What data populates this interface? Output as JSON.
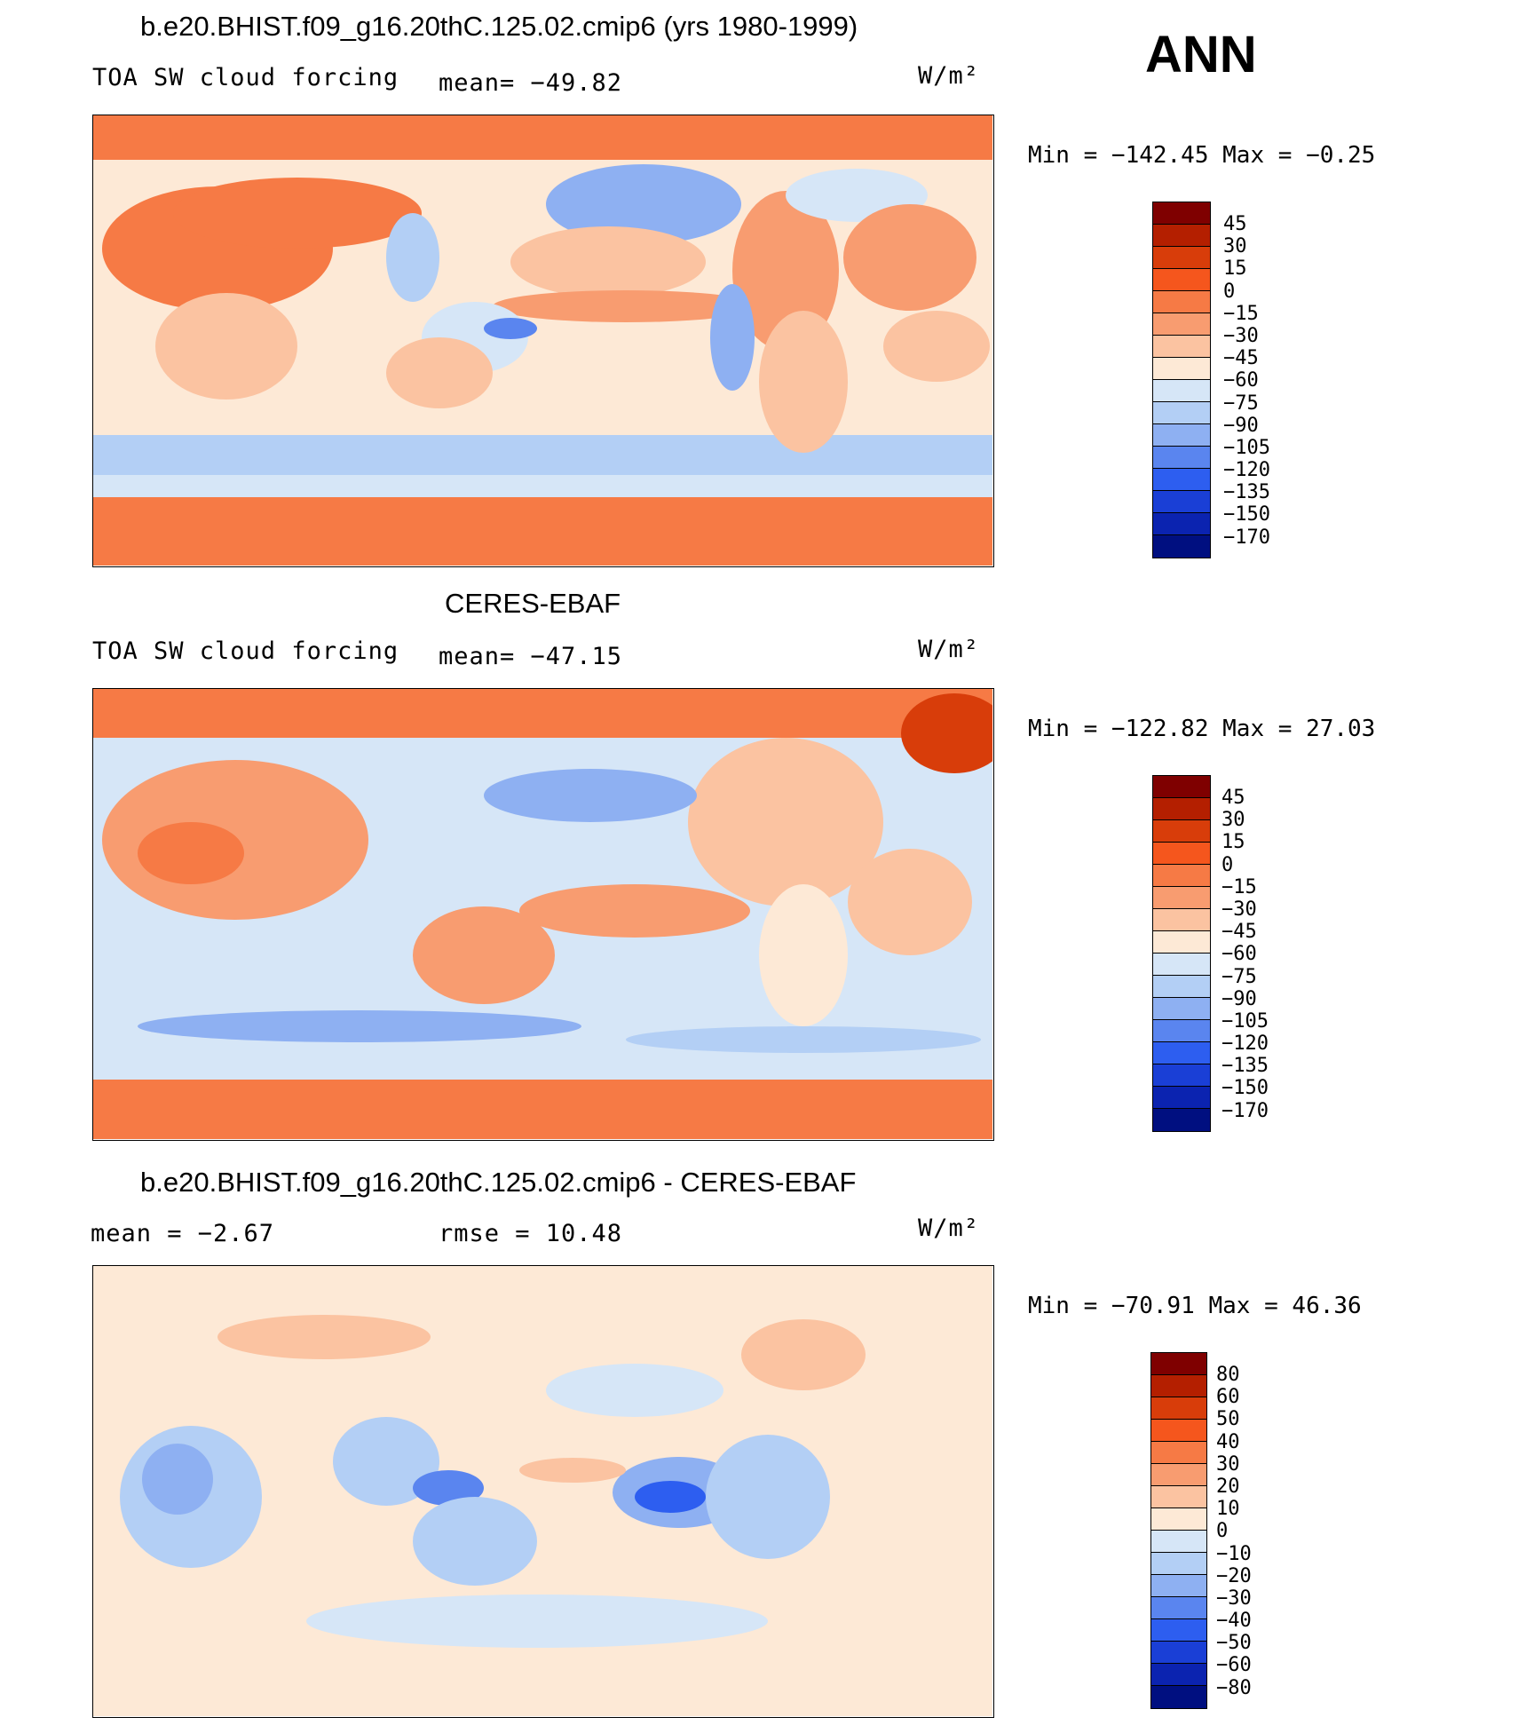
{
  "season": "ANN",
  "panels": [
    {
      "title": "b.e20.BHIST.f09_g16.20thC.125.02.cmip6 (yrs 1980-1999)",
      "variable": "TOA SW cloud forcing",
      "stat1": "mean= −49.82",
      "stat2": "",
      "units": "W/m²",
      "range": "Min = −142.45 Max =  −0.25",
      "colorbar_labels": [
        "45",
        "30",
        "15",
        "0",
        "−15",
        "−30",
        "−45",
        "−60",
        "−75",
        "−90",
        "−105",
        "−120",
        "−135",
        "−150",
        "−170"
      ],
      "map_style": "model"
    },
    {
      "title": "CERES-EBAF",
      "variable": "TOA SW cloud forcing",
      "stat1": "mean= −47.15",
      "stat2": "",
      "units": "W/m²",
      "range": "Min = −122.82 Max =  27.03",
      "colorbar_labels": [
        "45",
        "30",
        "15",
        "0",
        "−15",
        "−30",
        "−45",
        "−60",
        "−75",
        "−90",
        "−105",
        "−120",
        "−135",
        "−150",
        "−170"
      ],
      "map_style": "obs"
    },
    {
      "title": "b.e20.BHIST.f09_g16.20thC.125.02.cmip6 - CERES-EBAF",
      "variable": "mean =   −2.67",
      "stat1": "rmse =   10.48",
      "stat2": "",
      "units": "W/m²",
      "range": "Min = −70.91 Max =  46.36",
      "colorbar_labels": [
        "80",
        "60",
        "50",
        "40",
        "30",
        "20",
        "10",
        "0",
        "−10",
        "−20",
        "−30",
        "−40",
        "−50",
        "−60",
        "−80"
      ],
      "map_style": "diff"
    }
  ],
  "colorbar_colors": [
    "#7f0000",
    "#b41f00",
    "#d83d0a",
    "#f5561d",
    "#f67a45",
    "#f89c70",
    "#fbc3a1",
    "#fde9d6",
    "#d6e6f7",
    "#b3cff5",
    "#8eb0f2",
    "#5a85ef",
    "#2d5ef0",
    "#1a3fd6",
    "#0b23b0",
    "#000f80"
  ]
}
